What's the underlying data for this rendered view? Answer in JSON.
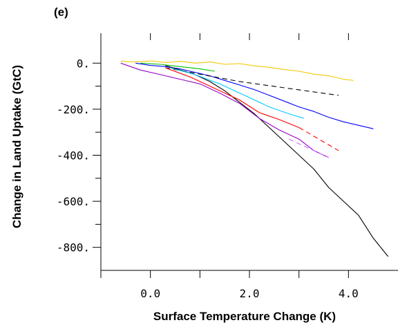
{
  "chart_data": {
    "type": "line",
    "panel_label": "(e)",
    "title": "",
    "xlabel": "Surface Temperature Change (K)",
    "ylabel": "Change in Land  Uptake (GtC)",
    "xlim": [
      -1.0,
      5.0
    ],
    "ylim": [
      -900,
      100
    ],
    "x_major_ticks": [
      0.0,
      2.0,
      4.0
    ],
    "x_tick_labels": [
      "0.0",
      "2.0",
      "4.0"
    ],
    "x_minor_ticks": [
      -1.0,
      1.0,
      3.0
    ],
    "y_major_ticks": [
      0,
      -200,
      -400,
      -600,
      -800
    ],
    "y_tick_labels": [
      "0.",
      "-200.",
      "-400.",
      "-600.",
      "-800."
    ],
    "y_minor_ticks": [
      -100,
      -300,
      -500,
      -700
    ],
    "grid": false,
    "legend": "none",
    "series": [
      {
        "color": "#f0c800",
        "style": "solid",
        "x": [
          -0.6,
          -0.3,
          0.0,
          0.3,
          0.6,
          0.9,
          1.2,
          1.5,
          1.8,
          2.1,
          2.4,
          2.7,
          3.0,
          3.3,
          3.6,
          3.9,
          4.1
        ],
        "y": [
          8,
          5,
          10,
          2,
          8,
          0,
          5,
          -5,
          -2,
          -12,
          -18,
          -28,
          -35,
          -48,
          -55,
          -70,
          -75
        ]
      },
      {
        "color": "#0000ff",
        "style": "solid",
        "x": [
          -0.3,
          0.0,
          0.3,
          0.6,
          0.9,
          1.2,
          1.5,
          1.8,
          2.1,
          2.4,
          2.7,
          3.0,
          3.3,
          3.6,
          3.9,
          4.2,
          4.5
        ],
        "y": [
          0,
          -10,
          -15,
          -25,
          -40,
          -55,
          -75,
          -95,
          -115,
          -140,
          -165,
          -190,
          -210,
          -235,
          -255,
          -270,
          -285
        ]
      },
      {
        "color": "#000000",
        "style": "solid",
        "x": [
          0.3,
          0.6,
          0.9,
          1.2,
          1.5,
          1.8,
          2.1,
          2.4,
          2.7,
          3.0,
          3.3,
          3.6,
          3.9,
          4.2,
          4.5,
          4.8
        ],
        "y": [
          -10,
          -30,
          -50,
          -80,
          -120,
          -170,
          -220,
          -280,
          -340,
          -400,
          -460,
          -540,
          -600,
          -660,
          -760,
          -840
        ]
      },
      {
        "color": "#000000",
        "style": "dashed",
        "x": [
          0.3,
          0.8,
          1.3,
          1.8,
          2.3,
          2.8,
          3.3,
          3.8
        ],
        "y": [
          -20,
          -40,
          -60,
          -80,
          -95,
          -110,
          -125,
          -140
        ]
      },
      {
        "color": "#ff0000",
        "style": "solid",
        "x": [
          0.3,
          0.8,
          1.3,
          1.8,
          2.2,
          2.6,
          3.0
        ],
        "y": [
          -20,
          -60,
          -110,
          -160,
          -215,
          -245,
          -280
        ]
      },
      {
        "color": "#ff0000",
        "style": "dashed",
        "x": [
          3.0,
          3.4,
          3.8
        ],
        "y": [
          -280,
          -330,
          -380
        ]
      },
      {
        "color": "#9900cc",
        "style": "solid",
        "x": [
          -0.6,
          -0.2,
          0.2,
          0.6,
          1.0,
          1.4,
          1.8,
          2.2,
          2.6,
          3.0,
          3.3,
          3.6
        ],
        "y": [
          0,
          -30,
          -50,
          -70,
          -90,
          -130,
          -175,
          -240,
          -290,
          -330,
          -380,
          -410
        ]
      },
      {
        "color": "#cc66ff",
        "style": "dashed",
        "x": [
          2.8,
          3.2,
          3.6
        ],
        "y": [
          -330,
          -370,
          -410
        ]
      },
      {
        "color": "#00c8ff",
        "style": "solid",
        "x": [
          0.4,
          0.9,
          1.4,
          1.9,
          2.4,
          2.8,
          3.1
        ],
        "y": [
          -20,
          -50,
          -90,
          -140,
          -190,
          -220,
          -240
        ]
      },
      {
        "color": "#00c000",
        "style": "solid",
        "x": [
          -0.2,
          0.2,
          0.6,
          1.0,
          1.3
        ],
        "y": [
          0,
          -5,
          -15,
          -25,
          -35
        ]
      }
    ]
  }
}
